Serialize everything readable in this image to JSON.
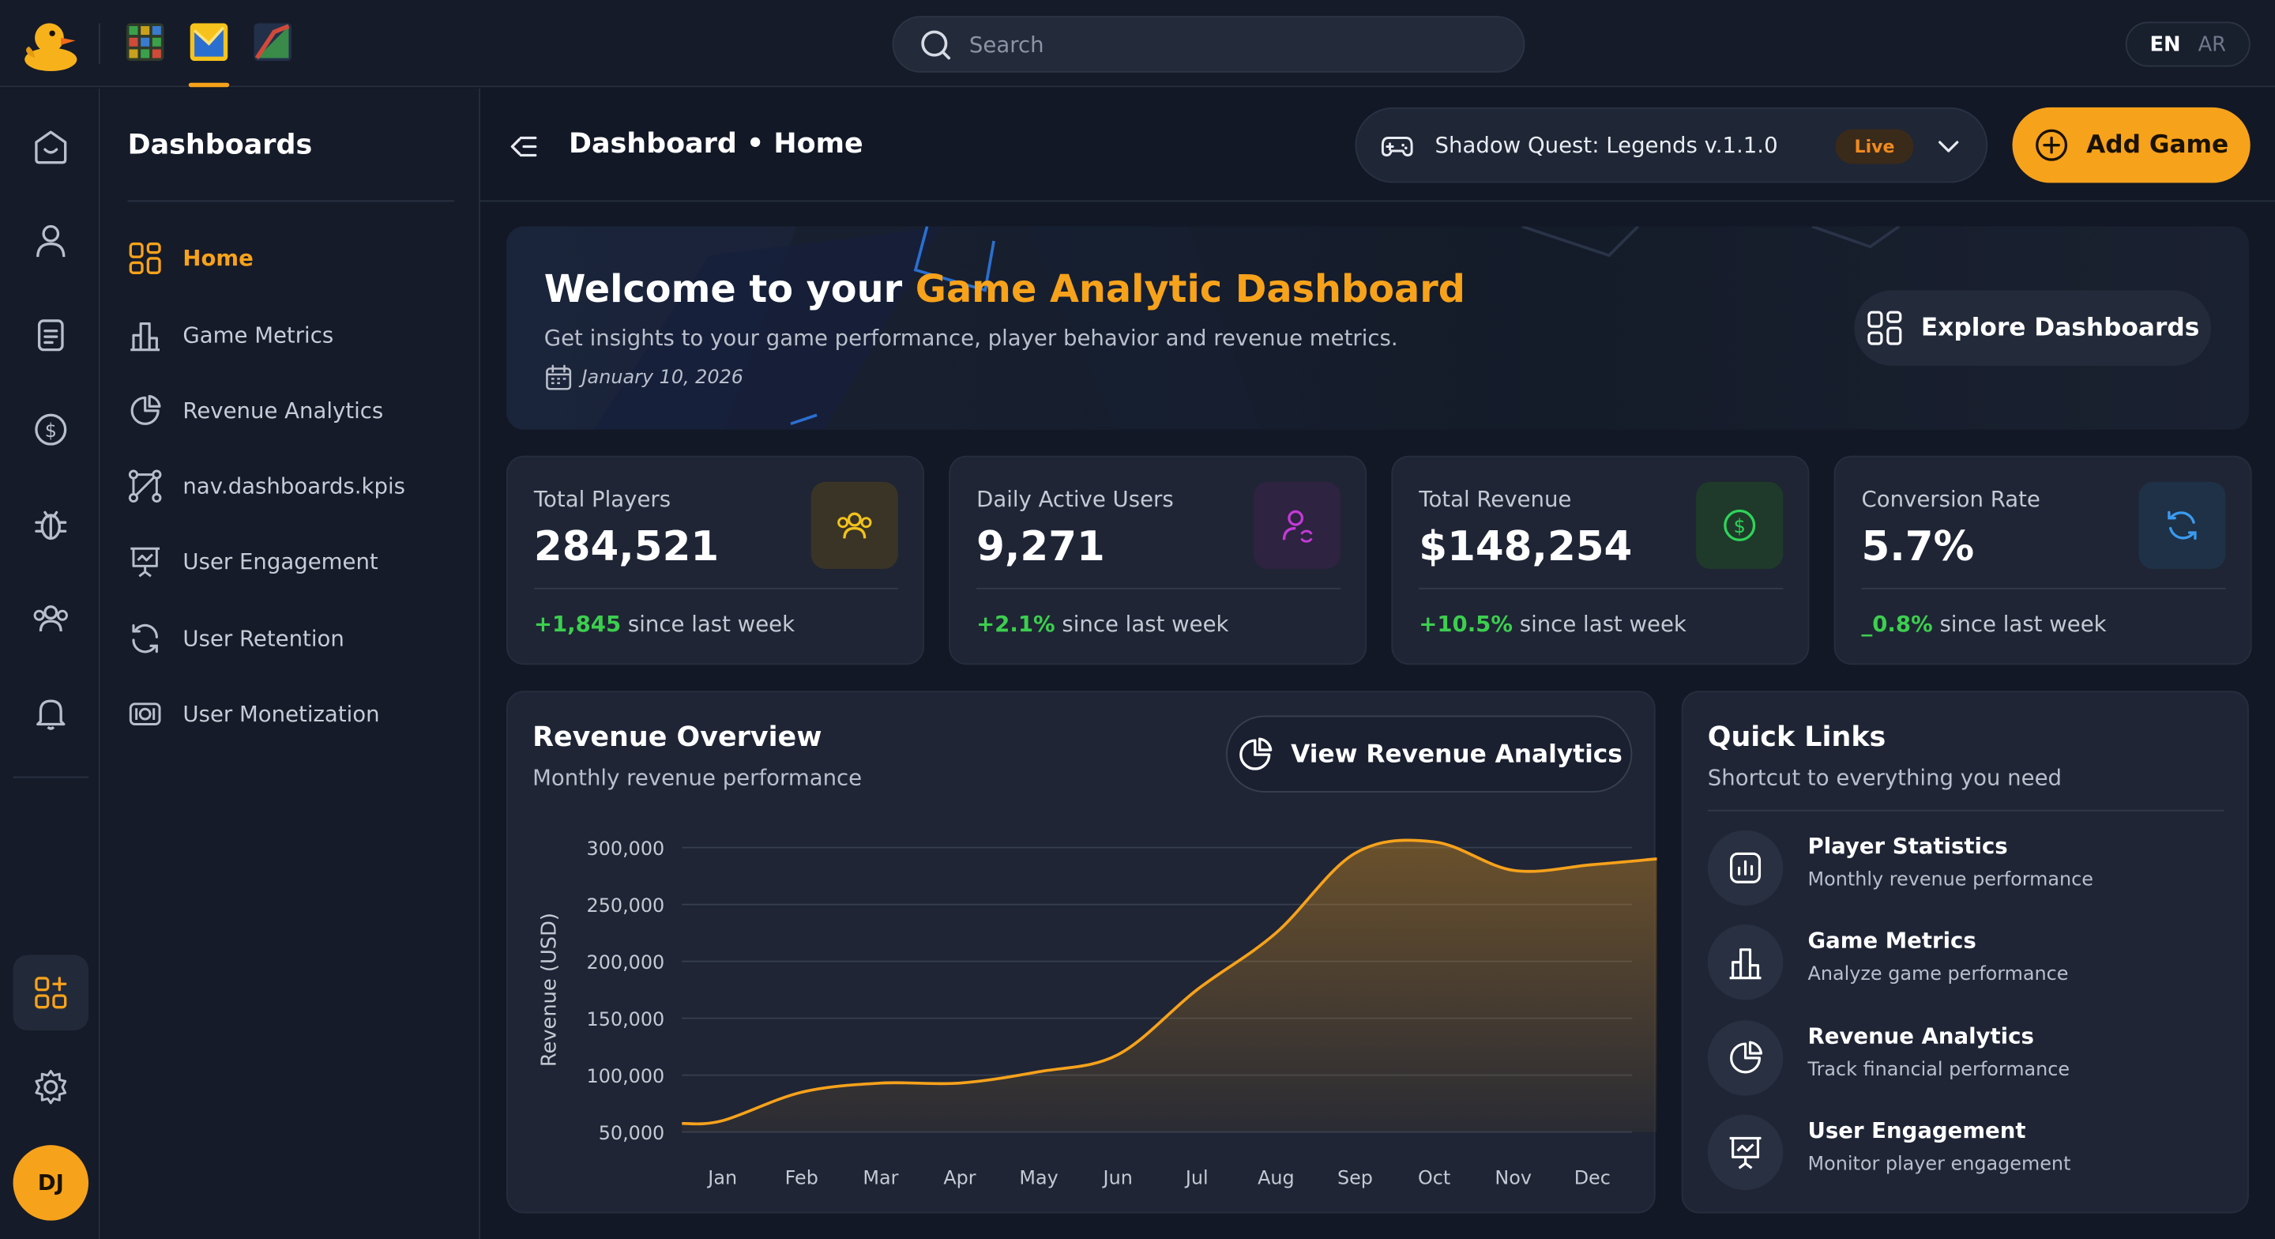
{
  "topbar": {
    "search_placeholder": "Search",
    "lang_active": "EN",
    "lang_inactive": "AR"
  },
  "sidenav": {
    "title": "Dashboards",
    "items": [
      {
        "label": "Home",
        "icon": "dashboard-grid-icon",
        "active": true
      },
      {
        "label": "Game Metrics",
        "icon": "bar-chart-icon",
        "active": false
      },
      {
        "label": "Revenue Analytics",
        "icon": "pie-chart-icon",
        "active": false
      },
      {
        "label": "nav.dashboards.kpis",
        "icon": "nodes-icon",
        "active": false
      },
      {
        "label": "User Engagement",
        "icon": "presentation-icon",
        "active": false
      },
      {
        "label": "User Retention",
        "icon": "refresh-icon",
        "active": false
      },
      {
        "label": "User Monetization",
        "icon": "cash-icon",
        "active": false
      }
    ]
  },
  "rail": {
    "avatar_initials": "DJ"
  },
  "header": {
    "breadcrumb": "Dashboard • Home",
    "game_name": "Shadow Quest: Legends v.1.1.0",
    "game_status": "Live",
    "add_game_label": "Add Game"
  },
  "banner": {
    "title_prefix": "Welcome to your ",
    "title_highlight": "Game Analytic Dashboard",
    "subtitle": "Get insights to your game performance, player behavior and revenue metrics.",
    "date": "January 10, 2026",
    "explore_label": "Explore Dashboards"
  },
  "stats": [
    {
      "label": "Total Players",
      "value": "284,521",
      "delta": "+1,845",
      "delta_suffix": " since last week",
      "icon": "users-icon",
      "accent": "#f2c31b",
      "tint": "#3a3426"
    },
    {
      "label": "Daily Active Users",
      "value": "9,271",
      "delta": "+2.1%",
      "delta_suffix": " since last week",
      "icon": "user-refresh-icon",
      "accent": "#c33ad8",
      "tint": "#2e2340"
    },
    {
      "label": "Total Revenue",
      "value": "$148,254",
      "delta": "+10.5%",
      "delta_suffix": " since last week",
      "icon": "dollar-icon",
      "accent": "#2fd35a",
      "tint": "#1f3a2a"
    },
    {
      "label": "Conversion Rate",
      "value": "5.7%",
      "delta": "_0.8%",
      "delta_suffix": " since last week",
      "icon": "cycle-icon",
      "accent": "#3a9bf0",
      "tint": "#1f3146"
    }
  ],
  "revenue": {
    "title": "Revenue Overview",
    "subtitle": "Monthly revenue performance",
    "button_label": "View Revenue Analytics"
  },
  "chart_data": {
    "type": "area",
    "categories": [
      "Jan",
      "Feb",
      "Mar",
      "Apr",
      "May",
      "Jun",
      "Jul",
      "Aug",
      "Sep",
      "Oct",
      "Nov",
      "Dec"
    ],
    "values": [
      60000,
      85000,
      93000,
      93000,
      103000,
      118000,
      175000,
      225000,
      295000,
      305000,
      280000,
      285000
    ],
    "ylabel": "Revenue (USD)",
    "yticks": [
      50000,
      100000,
      150000,
      200000,
      250000,
      300000
    ],
    "ytick_labels": [
      "50,000",
      "100,000",
      "150,000",
      "200,000",
      "250,000",
      "300,000"
    ],
    "ylim": [
      50000,
      300000
    ],
    "grid": true,
    "line_color": "#f7a21b"
  },
  "quick_links": {
    "title": "Quick Links",
    "subtitle": "Shortcut to everything you need",
    "items": [
      {
        "title": "Player Statistics",
        "desc": "Monthly revenue performance",
        "icon": "stats-icon"
      },
      {
        "title": "Game Metrics",
        "desc": "Analyze game performance",
        "icon": "bar-chart-icon"
      },
      {
        "title": "Revenue Analytics",
        "desc": "Track financial performance",
        "icon": "pie-chart-icon"
      },
      {
        "title": "User Engagement",
        "desc": "Monitor player engagement",
        "icon": "presentation-icon"
      }
    ]
  },
  "colors": {
    "accent": "#f7a21b",
    "positive": "#3ccf4e",
    "background": "#121826",
    "card": "#1f2535"
  }
}
